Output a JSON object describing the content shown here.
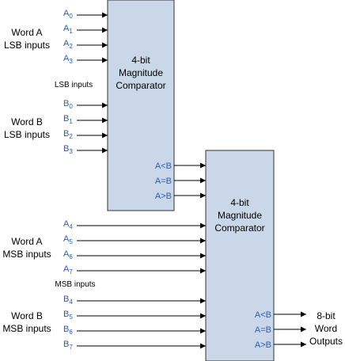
{
  "colors": {
    "box_fill": "#c9d7e8",
    "pin_label": "#2e5ea8",
    "wire": "#000000"
  },
  "comparator1": {
    "line1": "4-bit",
    "line2": "Magnitude",
    "line3": "Comparator"
  },
  "comparator2": {
    "line1": "4-bit",
    "line2": "Magnitude",
    "line3": "Comparator"
  },
  "groups": {
    "word_a_lsb": {
      "line1": "Word A",
      "line2": "LSB inputs"
    },
    "word_b_lsb": {
      "line1": "Word B",
      "line2": "LSB inputs"
    },
    "lsb_note": "LSB inputs",
    "word_a_msb": {
      "line1": "Word A",
      "line2": "MSB inputs"
    },
    "word_b_msb": {
      "line1": "Word B",
      "line2": "MSB inputs"
    },
    "msb_note": "MSB inputs",
    "outputs": {
      "line1": "8-bit",
      "line2": "Word",
      "line3": "Outputs"
    }
  },
  "inputs1": [
    {
      "base": "A",
      "sub": "0"
    },
    {
      "base": "A",
      "sub": "1"
    },
    {
      "base": "A",
      "sub": "2"
    },
    {
      "base": "A",
      "sub": "3"
    },
    {
      "base": "B",
      "sub": "0"
    },
    {
      "base": "B",
      "sub": "1"
    },
    {
      "base": "B",
      "sub": "2"
    },
    {
      "base": "B",
      "sub": "3"
    }
  ],
  "inputs2": [
    {
      "base": "A",
      "sub": "4"
    },
    {
      "base": "A",
      "sub": "5"
    },
    {
      "base": "A",
      "sub": "6"
    },
    {
      "base": "A",
      "sub": "7"
    },
    {
      "base": "B",
      "sub": "4"
    },
    {
      "base": "B",
      "sub": "5"
    },
    {
      "base": "B",
      "sub": "6"
    },
    {
      "base": "B",
      "sub": "7"
    }
  ],
  "outputs1": [
    "A<B",
    "A=B",
    "A>B"
  ],
  "outputs2": [
    "A<B",
    "A=B",
    "A>B"
  ]
}
